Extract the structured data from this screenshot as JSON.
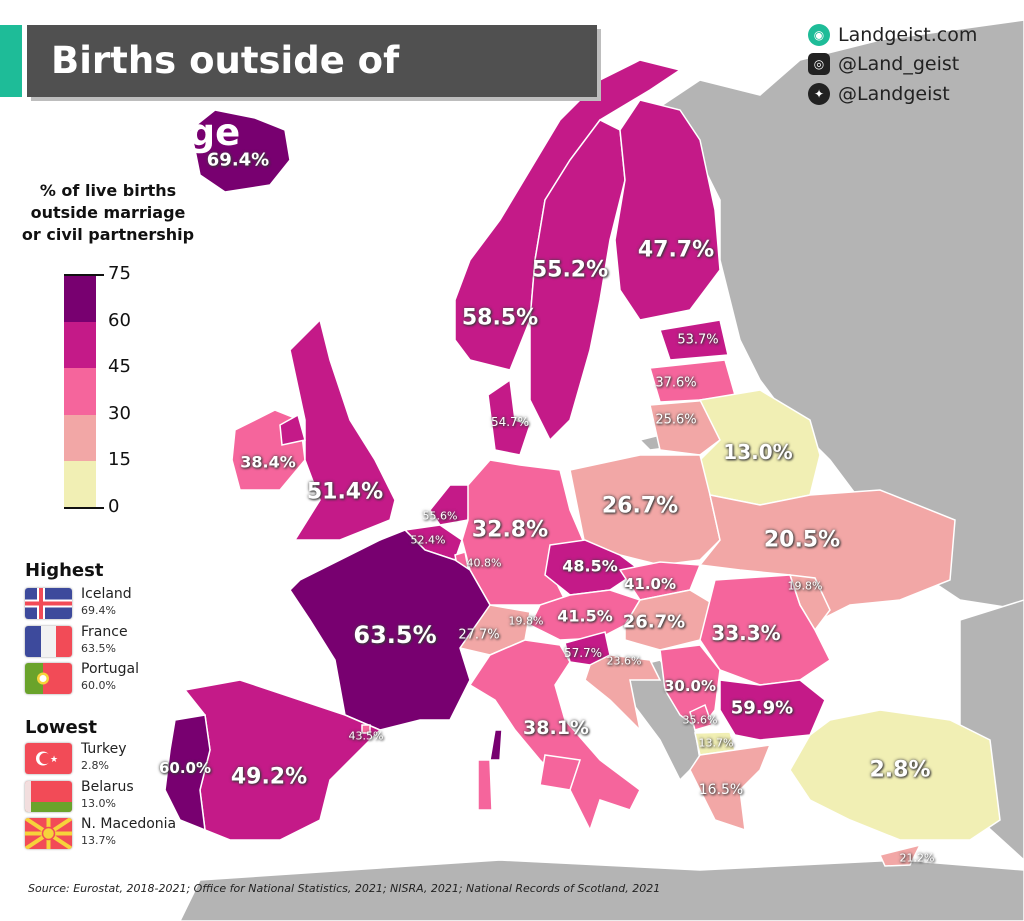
{
  "title": "Births outside of marriage",
  "social": [
    {
      "icon": "landgeist-globe-icon",
      "text": "Landgeist.com"
    },
    {
      "icon": "instagram-icon",
      "text": "@Land_geist"
    },
    {
      "icon": "twitter-icon",
      "text": "@Landgeist"
    }
  ],
  "legend": {
    "title_lines": [
      "% of live births",
      "outside marriage",
      "or civil partnership"
    ],
    "ticks": [
      "75",
      "60",
      "45",
      "30",
      "15",
      "0"
    ],
    "bins": [
      {
        "range": [
          60,
          75
        ],
        "color": "#780070"
      },
      {
        "range": [
          45,
          60
        ],
        "color": "#c41a88"
      },
      {
        "range": [
          30,
          45
        ],
        "color": "#f5659c"
      },
      {
        "range": [
          15,
          30
        ],
        "color": "#f2a7a6"
      },
      {
        "range": [
          0,
          15
        ],
        "color": "#f1efb4"
      }
    ],
    "no_data_color": "#b4b4b4"
  },
  "highest": {
    "heading": "Highest",
    "items": [
      {
        "country": "Iceland",
        "value": "69.4%",
        "flag": "iceland-flag"
      },
      {
        "country": "France",
        "value": "63.5%",
        "flag": "france-flag"
      },
      {
        "country": "Portugal",
        "value": "60.0%",
        "flag": "portugal-flag"
      }
    ]
  },
  "lowest": {
    "heading": "Lowest",
    "items": [
      {
        "country": "Turkey",
        "value": "2.8%",
        "flag": "turkey-flag"
      },
      {
        "country": "Belarus",
        "value": "13.0%",
        "flag": "belarus-flag"
      },
      {
        "country": "N. Macedonia",
        "value": "13.7%",
        "flag": "north-macedonia-flag"
      }
    ]
  },
  "regions": [
    {
      "id": "iceland",
      "value": 69.4,
      "label": "69.4%"
    },
    {
      "id": "norway",
      "value": 58.5,
      "label": "58.5%"
    },
    {
      "id": "sweden",
      "value": 55.2,
      "label": "55.2%"
    },
    {
      "id": "finland",
      "value": 47.7,
      "label": "47.7%"
    },
    {
      "id": "estonia",
      "value": 53.7,
      "label": "53.7%"
    },
    {
      "id": "latvia",
      "value": 37.6,
      "label": "37.6%"
    },
    {
      "id": "lithuania",
      "value": 25.6,
      "label": "25.6%"
    },
    {
      "id": "belarus",
      "value": 13.0,
      "label": "13.0%"
    },
    {
      "id": "denmark",
      "value": 54.7,
      "label": "54.7%"
    },
    {
      "id": "ireland",
      "value": 38.4,
      "label": "38.4%"
    },
    {
      "id": "uk",
      "value": 51.4,
      "label": "51.4%"
    },
    {
      "id": "netherlands",
      "value": 55.6,
      "label": "55.6%"
    },
    {
      "id": "belgium",
      "value": 52.4,
      "label": "52.4%"
    },
    {
      "id": "luxembourg",
      "value": 40.8,
      "label": "40.8%"
    },
    {
      "id": "germany",
      "value": 32.8,
      "label": "32.8%"
    },
    {
      "id": "poland",
      "value": 26.7,
      "label": "26.7%"
    },
    {
      "id": "ukraine",
      "value": 20.5,
      "label": "20.5%"
    },
    {
      "id": "moldova",
      "value": 19.8,
      "label": "19.8%"
    },
    {
      "id": "czechia",
      "value": 48.5,
      "label": "48.5%"
    },
    {
      "id": "slovakia",
      "value": 41.0,
      "label": "41.0%"
    },
    {
      "id": "austria",
      "value": 41.5,
      "label": "41.5%"
    },
    {
      "id": "hungary",
      "value": 26.7,
      "label": "26.7%"
    },
    {
      "id": "romania",
      "value": 33.3,
      "label": "33.3%"
    },
    {
      "id": "liechtenstein",
      "value": 19.8,
      "label": "19.8%"
    },
    {
      "id": "switzerland",
      "value": 27.7,
      "label": "27.7%"
    },
    {
      "id": "slovenia",
      "value": 57.7,
      "label": "57.7%"
    },
    {
      "id": "croatia",
      "value": 23.6,
      "label": "23.6%"
    },
    {
      "id": "serbia",
      "value": 30.0,
      "label": "30.0%"
    },
    {
      "id": "bulgaria",
      "value": 59.9,
      "label": "59.9%"
    },
    {
      "id": "kosovo",
      "value": 35.6,
      "label": "35.6%"
    },
    {
      "id": "north-macedonia",
      "value": 13.7,
      "label": "13.7%"
    },
    {
      "id": "france",
      "value": 63.5,
      "label": "63.5%"
    },
    {
      "id": "spain",
      "value": 49.2,
      "label": "49.2%"
    },
    {
      "id": "portugal",
      "value": 60.0,
      "label": "60.0%"
    },
    {
      "id": "andorra",
      "value": 43.5,
      "label": "43.5%"
    },
    {
      "id": "italy",
      "value": 38.1,
      "label": "38.1%"
    },
    {
      "id": "greece",
      "value": 16.5,
      "label": "16.5%"
    },
    {
      "id": "turkey",
      "value": 2.8,
      "label": "2.8%"
    },
    {
      "id": "cyprus",
      "value": 21.2,
      "label": "21.2%"
    }
  ],
  "source": "Source: Eurostat, 2018-2021; Office for National Statistics, 2021; NISRA, 2021; National Records of Scotland, 2021"
}
